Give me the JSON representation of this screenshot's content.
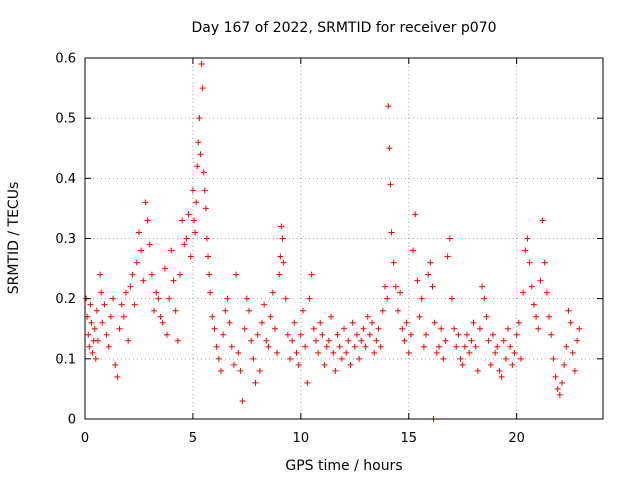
{
  "chart_data": {
    "type": "scatter",
    "title": "Day 167 of 2022, SRMTID for receiver p070",
    "xlabel": "GPS time / hours",
    "ylabel": "SRMTID / TECUs",
    "xlim": [
      0,
      24
    ],
    "ylim": [
      0,
      0.6
    ],
    "xticks": [
      0,
      5,
      10,
      15,
      20
    ],
    "xtick_labels": [
      "0",
      "5",
      "10",
      "15",
      "20"
    ],
    "yticks": [
      0,
      0.1,
      0.2,
      0.3,
      0.4,
      0.5,
      0.6
    ],
    "ytick_labels": [
      "0",
      "0.1",
      "0.2",
      "0.3",
      "0.4",
      "0.5",
      "0.6"
    ],
    "grid": true,
    "marker": "+",
    "color": "#ff0000",
    "series": [
      {
        "name": "SRMTID",
        "points": [
          [
            0.05,
            0.2
          ],
          [
            0.1,
            0.17
          ],
          [
            0.15,
            0.14
          ],
          [
            0.2,
            0.12
          ],
          [
            0.25,
            0.19
          ],
          [
            0.3,
            0.16
          ],
          [
            0.35,
            0.11
          ],
          [
            0.4,
            0.13
          ],
          [
            0.45,
            0.15
          ],
          [
            0.5,
            0.1
          ],
          [
            0.55,
            0.18
          ],
          [
            0.6,
            0.13
          ],
          [
            0.7,
            0.24
          ],
          [
            0.75,
            0.21
          ],
          [
            0.8,
            0.16
          ],
          [
            0.9,
            0.19
          ],
          [
            1.0,
            0.14
          ],
          [
            1.1,
            0.12
          ],
          [
            1.2,
            0.17
          ],
          [
            1.3,
            0.2
          ],
          [
            1.4,
            0.09
          ],
          [
            1.5,
            0.07
          ],
          [
            1.6,
            0.15
          ],
          [
            1.7,
            0.19
          ],
          [
            1.8,
            0.17
          ],
          [
            1.9,
            0.21
          ],
          [
            2.0,
            0.13
          ],
          [
            2.1,
            0.22
          ],
          [
            2.2,
            0.24
          ],
          [
            2.3,
            0.19
          ],
          [
            2.4,
            0.26
          ],
          [
            2.5,
            0.31
          ],
          [
            2.6,
            0.28
          ],
          [
            2.7,
            0.23
          ],
          [
            2.8,
            0.36
          ],
          [
            2.9,
            0.33
          ],
          [
            3.0,
            0.29
          ],
          [
            3.1,
            0.24
          ],
          [
            3.2,
            0.18
          ],
          [
            3.3,
            0.21
          ],
          [
            3.4,
            0.2
          ],
          [
            3.5,
            0.17
          ],
          [
            3.6,
            0.16
          ],
          [
            3.7,
            0.25
          ],
          [
            3.8,
            0.14
          ],
          [
            3.9,
            0.2
          ],
          [
            4.0,
            0.28
          ],
          [
            4.1,
            0.23
          ],
          [
            4.2,
            0.18
          ],
          [
            4.3,
            0.13
          ],
          [
            4.4,
            0.24
          ],
          [
            4.5,
            0.33
          ],
          [
            4.6,
            0.29
          ],
          [
            4.7,
            0.3
          ],
          [
            4.8,
            0.34
          ],
          [
            4.9,
            0.27
          ],
          [
            5.0,
            0.38
          ],
          [
            5.05,
            0.33
          ],
          [
            5.1,
            0.31
          ],
          [
            5.15,
            0.36
          ],
          [
            5.2,
            0.42
          ],
          [
            5.25,
            0.46
          ],
          [
            5.3,
            0.5
          ],
          [
            5.35,
            0.44
          ],
          [
            5.4,
            0.59
          ],
          [
            5.45,
            0.55
          ],
          [
            5.5,
            0.41
          ],
          [
            5.55,
            0.38
          ],
          [
            5.6,
            0.35
          ],
          [
            5.65,
            0.3
          ],
          [
            5.7,
            0.27
          ],
          [
            5.75,
            0.24
          ],
          [
            5.8,
            0.21
          ],
          [
            5.9,
            0.17
          ],
          [
            6.0,
            0.15
          ],
          [
            6.1,
            0.12
          ],
          [
            6.2,
            0.1
          ],
          [
            6.3,
            0.08
          ],
          [
            6.4,
            0.14
          ],
          [
            6.5,
            0.18
          ],
          [
            6.6,
            0.2
          ],
          [
            6.7,
            0.16
          ],
          [
            6.8,
            0.12
          ],
          [
            6.9,
            0.09
          ],
          [
            7.0,
            0.24
          ],
          [
            7.1,
            0.11
          ],
          [
            7.2,
            0.08
          ],
          [
            7.3,
            0.03
          ],
          [
            7.4,
            0.15
          ],
          [
            7.5,
            0.2
          ],
          [
            7.6,
            0.18
          ],
          [
            7.7,
            0.13
          ],
          [
            7.8,
            0.1
          ],
          [
            7.9,
            0.06
          ],
          [
            8.0,
            0.14
          ],
          [
            8.1,
            0.08
          ],
          [
            8.2,
            0.16
          ],
          [
            8.3,
            0.19
          ],
          [
            8.4,
            0.13
          ],
          [
            8.5,
            0.12
          ],
          [
            8.6,
            0.17
          ],
          [
            8.7,
            0.21
          ],
          [
            8.8,
            0.15
          ],
          [
            8.9,
            0.11
          ],
          [
            9.0,
            0.24
          ],
          [
            9.05,
            0.27
          ],
          [
            9.1,
            0.32
          ],
          [
            9.15,
            0.3
          ],
          [
            9.2,
            0.26
          ],
          [
            9.3,
            0.2
          ],
          [
            9.4,
            0.14
          ],
          [
            9.5,
            0.1
          ],
          [
            9.6,
            0.13
          ],
          [
            9.7,
            0.16
          ],
          [
            9.8,
            0.11
          ],
          [
            9.9,
            0.09
          ],
          [
            10.0,
            0.14
          ],
          [
            10.1,
            0.18
          ],
          [
            10.2,
            0.12
          ],
          [
            10.3,
            0.06
          ],
          [
            10.4,
            0.2
          ],
          [
            10.5,
            0.24
          ],
          [
            10.6,
            0.15
          ],
          [
            10.7,
            0.13
          ],
          [
            10.8,
            0.11
          ],
          [
            10.9,
            0.16
          ],
          [
            11.0,
            0.14
          ],
          [
            11.1,
            0.09
          ],
          [
            11.2,
            0.12
          ],
          [
            11.3,
            0.13
          ],
          [
            11.4,
            0.17
          ],
          [
            11.5,
            0.11
          ],
          [
            11.6,
            0.08
          ],
          [
            11.7,
            0.14
          ],
          [
            11.8,
            0.12
          ],
          [
            11.9,
            0.1
          ],
          [
            12.0,
            0.15
          ],
          [
            12.1,
            0.11
          ],
          [
            12.2,
            0.13
          ],
          [
            12.3,
            0.09
          ],
          [
            12.4,
            0.16
          ],
          [
            12.5,
            0.12
          ],
          [
            12.6,
            0.14
          ],
          [
            12.7,
            0.1
          ],
          [
            12.8,
            0.13
          ],
          [
            12.9,
            0.15
          ],
          [
            13.0,
            0.12
          ],
          [
            13.1,
            0.17
          ],
          [
            13.2,
            0.14
          ],
          [
            13.3,
            0.16
          ],
          [
            13.4,
            0.11
          ],
          [
            13.5,
            0.13
          ],
          [
            13.6,
            0.15
          ],
          [
            13.7,
            0.12
          ],
          [
            13.8,
            0.18
          ],
          [
            13.9,
            0.22
          ],
          [
            14.0,
            0.2
          ],
          [
            14.05,
            0.52
          ],
          [
            14.1,
            0.45
          ],
          [
            14.15,
            0.39
          ],
          [
            14.2,
            0.31
          ],
          [
            14.3,
            0.26
          ],
          [
            14.4,
            0.22
          ],
          [
            14.5,
            0.18
          ],
          [
            14.6,
            0.21
          ],
          [
            14.7,
            0.15
          ],
          [
            14.8,
            0.13
          ],
          [
            14.9,
            0.16
          ],
          [
            15.0,
            0.11
          ],
          [
            15.1,
            0.14
          ],
          [
            15.2,
            0.28
          ],
          [
            15.3,
            0.34
          ],
          [
            15.4,
            0.23
          ],
          [
            15.5,
            0.17
          ],
          [
            15.6,
            0.2
          ],
          [
            15.7,
            0.12
          ],
          [
            15.8,
            0.14
          ],
          [
            15.9,
            0.24
          ],
          [
            16.0,
            0.26
          ],
          [
            16.1,
            0.22
          ],
          [
            16.15,
            0.0
          ],
          [
            16.2,
            0.16
          ],
          [
            16.3,
            0.11
          ],
          [
            16.4,
            0.12
          ],
          [
            16.5,
            0.15
          ],
          [
            16.6,
            0.1
          ],
          [
            16.7,
            0.13
          ],
          [
            16.8,
            0.27
          ],
          [
            16.9,
            0.3
          ],
          [
            17.0,
            0.2
          ],
          [
            17.1,
            0.15
          ],
          [
            17.2,
            0.12
          ],
          [
            17.3,
            0.14
          ],
          [
            17.4,
            0.1
          ],
          [
            17.5,
            0.09
          ],
          [
            17.6,
            0.12
          ],
          [
            17.7,
            0.14
          ],
          [
            17.8,
            0.11
          ],
          [
            17.9,
            0.13
          ],
          [
            18.0,
            0.16
          ],
          [
            18.1,
            0.12
          ],
          [
            18.2,
            0.08
          ],
          [
            18.3,
            0.15
          ],
          [
            18.4,
            0.22
          ],
          [
            18.5,
            0.2
          ],
          [
            18.6,
            0.17
          ],
          [
            18.7,
            0.13
          ],
          [
            18.8,
            0.09
          ],
          [
            18.9,
            0.14
          ],
          [
            19.0,
            0.11
          ],
          [
            19.1,
            0.12
          ],
          [
            19.2,
            0.08
          ],
          [
            19.3,
            0.07
          ],
          [
            19.4,
            0.13
          ],
          [
            19.5,
            0.1
          ],
          [
            19.6,
            0.15
          ],
          [
            19.7,
            0.12
          ],
          [
            19.8,
            0.09
          ],
          [
            19.9,
            0.11
          ],
          [
            20.0,
            0.14
          ],
          [
            20.1,
            0.16
          ],
          [
            20.2,
            0.1
          ],
          [
            20.3,
            0.21
          ],
          [
            20.4,
            0.28
          ],
          [
            20.5,
            0.3
          ],
          [
            20.6,
            0.26
          ],
          [
            20.7,
            0.22
          ],
          [
            20.8,
            0.19
          ],
          [
            20.9,
            0.17
          ],
          [
            21.0,
            0.15
          ],
          [
            21.1,
            0.23
          ],
          [
            21.2,
            0.33
          ],
          [
            21.3,
            0.26
          ],
          [
            21.4,
            0.21
          ],
          [
            21.5,
            0.17
          ],
          [
            21.6,
            0.14
          ],
          [
            21.7,
            0.1
          ],
          [
            21.8,
            0.07
          ],
          [
            21.9,
            0.05
          ],
          [
            22.0,
            0.04
          ],
          [
            22.1,
            0.06
          ],
          [
            22.2,
            0.09
          ],
          [
            22.3,
            0.12
          ],
          [
            22.4,
            0.18
          ],
          [
            22.5,
            0.16
          ],
          [
            22.6,
            0.11
          ],
          [
            22.7,
            0.08
          ],
          [
            22.8,
            0.13
          ],
          [
            22.9,
            0.15
          ]
        ]
      }
    ]
  }
}
